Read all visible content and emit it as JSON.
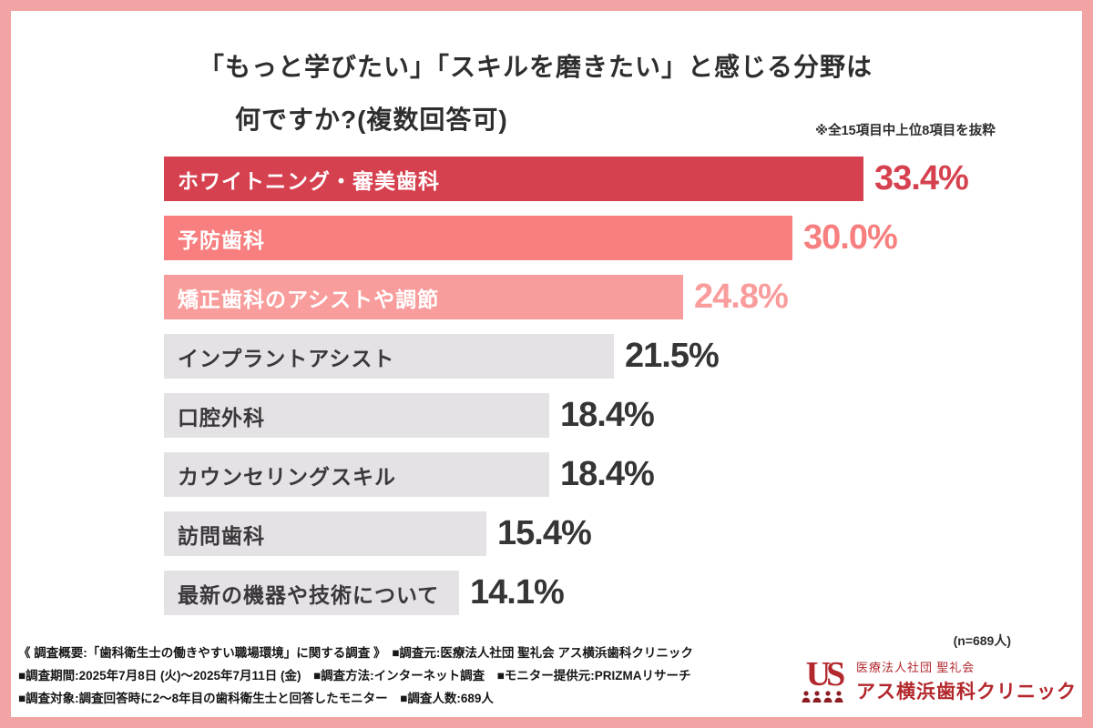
{
  "frame": {
    "border_color": "#f2a3a3",
    "background": "#ffffff"
  },
  "header": {
    "title_line1": "「もっと学びたい」「スキルを磨きたい」と感じる分野は",
    "title_line2": "何ですか?(複数回答可)",
    "note": "※全15項目中上位8項目を抜粋"
  },
  "chart_data": {
    "type": "bar",
    "orientation": "horizontal",
    "title": "「もっと学びたい」「スキルを磨きたい」と感じる分野は何ですか?(複数回答可)",
    "categories": [
      "ホワイトニング・審美歯科",
      "予防歯科",
      "矯正歯科のアシストや調節",
      "インプラントアシスト",
      "口腔外科",
      "カウンセリングスキル",
      "訪問歯科",
      "最新の機器や技術について"
    ],
    "values": [
      33.4,
      30.0,
      24.8,
      21.5,
      18.4,
      18.4,
      15.4,
      14.1
    ],
    "value_labels": [
      "33.4%",
      "30.0%",
      "24.8%",
      "21.5%",
      "18.4%",
      "18.4%",
      "15.4%",
      "14.1%"
    ],
    "bar_colors": [
      "#d6414f",
      "#f87f7f",
      "#f99c9c",
      "#e4e2e4",
      "#e4e2e4",
      "#e4e2e4",
      "#e4e2e4",
      "#e4e2e4"
    ],
    "bar_label_colors": [
      "#ffffff",
      "#ffffff",
      "#ffffff",
      "#3c373a",
      "#3c373a",
      "#3c373a",
      "#3c373a",
      "#3c373a"
    ],
    "value_text_colors": [
      "#d6414f",
      "#f87f7f",
      "#f99c9c",
      "#353535",
      "#353535",
      "#353535",
      "#353535",
      "#353535"
    ],
    "xlim": [
      0,
      33.4
    ],
    "grid": false,
    "legend": "none",
    "sample_note": "(n=689人)"
  },
  "footer": {
    "line1": "《 調査概要:「歯科衛生士の働きやすい職場環境」に関する調査 》　■調査元:医療法人社団 聖礼会 アス横浜歯科クリニック",
    "line2": "■調査期間:2025年7月8日 (火)〜2025年7月11日 (金)　■調査方法:インターネット調査　■モニター提供元:PRIZMAリサーチ",
    "line3": "■調査対象:調査回答時に2〜8年目の歯科衛生士と回答したモニター　■調査人数:689人",
    "logo": {
      "monogram": "US",
      "org_small": "医療法人社団 聖礼会",
      "org_large": "アス横浜歯科クリニック",
      "accent_color": "#b3282d"
    }
  }
}
